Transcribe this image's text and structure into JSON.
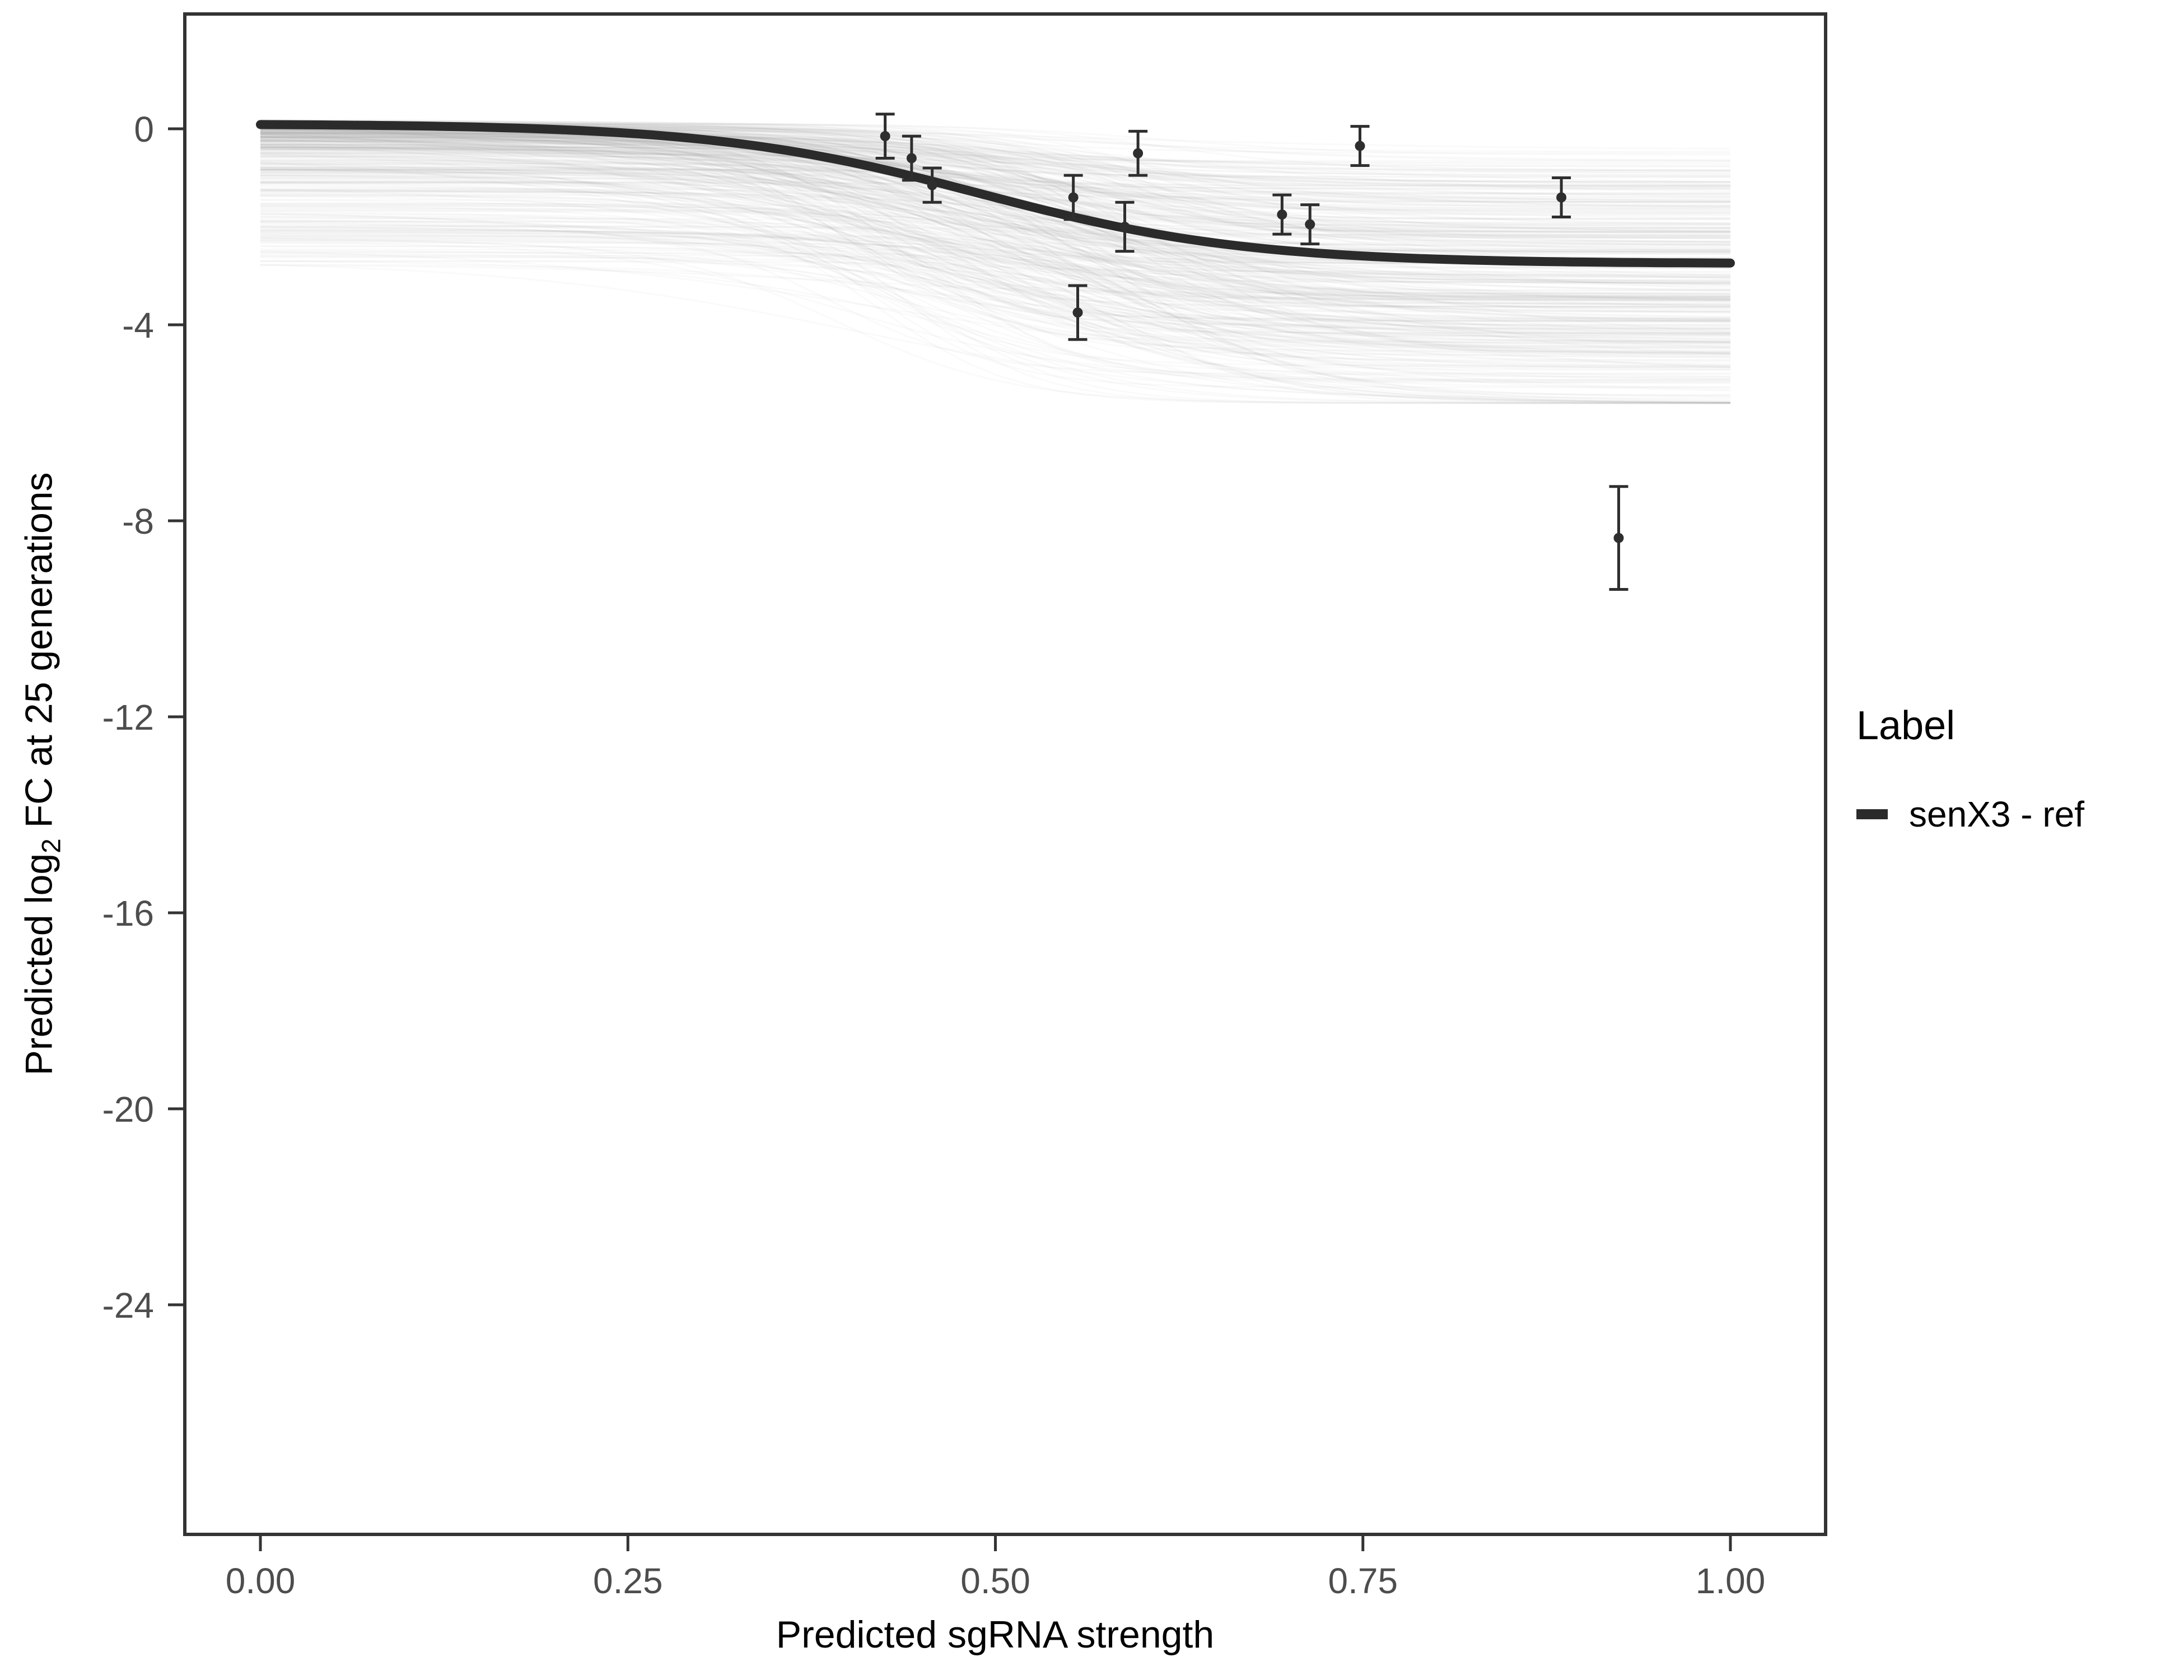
{
  "chart_data": {
    "type": "line",
    "title": "",
    "xlabel": "Predicted sgRNA strength",
    "y_title_prefix": "Predicted  ",
    "y_title_log": "log",
    "y_title_sub": "2",
    "y_title_suffix": " FC at 25 generations",
    "ylabel": "Predicted log2 FC at 25 generations",
    "xlim": [
      -0.05,
      1.05
    ],
    "ylim": [
      -28.7,
      1.3
    ],
    "grid": "off",
    "x_ticks": [
      0,
      0.25,
      0.5,
      0.75,
      1.0
    ],
    "x_tick_labels": [
      "0.00",
      "0.25",
      "0.50",
      "0.75",
      "1.00"
    ],
    "y_ticks": [
      0,
      -4,
      -8,
      -12,
      -16,
      -20,
      -24
    ],
    "y_tick_labels": [
      "0",
      "-4",
      "-8",
      "-12",
      "-16",
      "-20",
      "-24"
    ],
    "legend": {
      "position": "right",
      "title": "Label",
      "items": [
        {
          "label": "senX3 - ref",
          "color": "#2b2b2b"
        }
      ]
    },
    "main_curve": {
      "label": "senX3 - ref",
      "model": "sigmoid",
      "top": 0.1,
      "bottom": -2.75,
      "midpoint": 0.49,
      "steepness": 11,
      "color": "#2b2b2b",
      "stroke_width": 16
    },
    "posterior_ensemble": {
      "description": "faint gray posterior sample sigmoid curves forming a band",
      "count": 400,
      "seed": 7,
      "color": "#8c8c8c",
      "opacity": 0.045,
      "stroke_width": 3,
      "top_bias": 2.8,
      "drop_min": 0.5,
      "drop_max": 4.6,
      "floor": -5.6,
      "midpoint_range": [
        0.38,
        0.62
      ],
      "steepness_range": [
        7,
        22
      ]
    },
    "points": [
      {
        "x": 0.425,
        "y": -0.15,
        "err": 0.45
      },
      {
        "x": 0.443,
        "y": -0.6,
        "err": 0.45
      },
      {
        "x": 0.457,
        "y": -1.15,
        "err": 0.35
      },
      {
        "x": 0.553,
        "y": -1.4,
        "err": 0.45
      },
      {
        "x": 0.556,
        "y": -3.75,
        "err": 0.55
      },
      {
        "x": 0.588,
        "y": -2.0,
        "err": 0.5
      },
      {
        "x": 0.597,
        "y": -0.5,
        "err": 0.45
      },
      {
        "x": 0.695,
        "y": -1.75,
        "err": 0.4
      },
      {
        "x": 0.714,
        "y": -1.95,
        "err": 0.4
      },
      {
        "x": 0.748,
        "y": -0.35,
        "err": 0.4
      },
      {
        "x": 0.885,
        "y": -1.4,
        "err": 0.4
      },
      {
        "x": 0.924,
        "y": -8.35,
        "err": 1.05
      }
    ],
    "point_color": "#2e2e2e",
    "axis_color": "#333333",
    "tick_text_color": "#4d4d4d",
    "background": "#ffffff"
  }
}
